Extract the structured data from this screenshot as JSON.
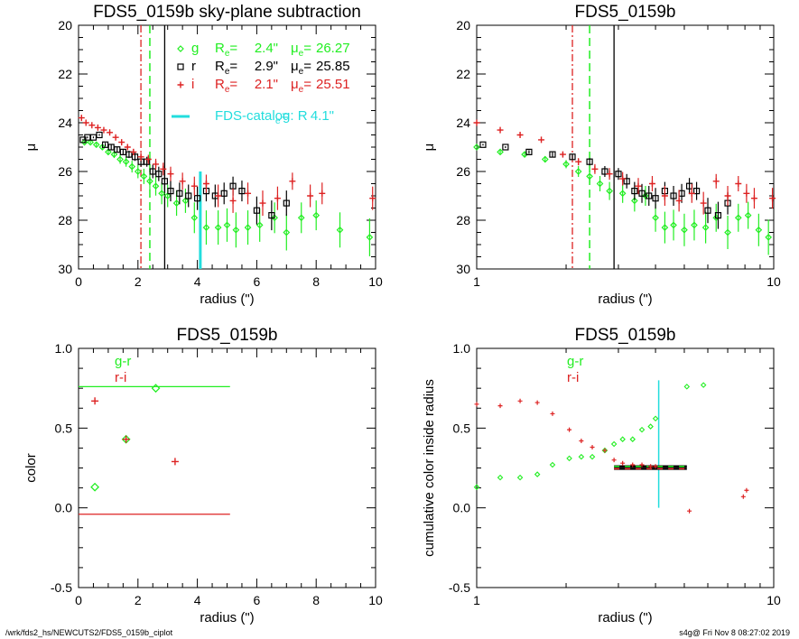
{
  "colors": {
    "g": "#22ee22",
    "r": "#000000",
    "i": "#dd2222",
    "catalog": "#22dddd"
  },
  "footer": {
    "path": "/wrk/fds2_hs/NEWCUTS2/FDS5_0159b_ciplot",
    "stamp": "s4g@  Fri Nov  8 08:27:02 2019"
  },
  "chart_data": [
    {
      "type": "scatter",
      "title": "FDS5_0159b sky-plane subtraction",
      "xlabel": "radius (\")",
      "ylabel": "μ",
      "xlim": [
        0,
        10
      ],
      "ylim": [
        30,
        20
      ],
      "xticks": [
        0,
        2,
        4,
        6,
        8,
        10
      ],
      "yticks": [
        20,
        22,
        24,
        26,
        28,
        30
      ],
      "legend": [
        {
          "band": "g",
          "re": "2.4\"",
          "mu": "26.27"
        },
        {
          "band": "r",
          "re": "2.9\"",
          "mu": "25.85"
        },
        {
          "band": "i",
          "re": "2.1\"",
          "mu": "25.51"
        }
      ],
      "catalog_label": "FDS-catalog: R",
      "catalog_re": "4.1\"",
      "vlines": {
        "g": 2.4,
        "r": 2.9,
        "i": 2.1,
        "catalog": 4.1
      },
      "series": [
        {
          "name": "g",
          "x": [
            0.2,
            0.4,
            0.6,
            0.8,
            1.0,
            1.2,
            1.4,
            1.6,
            1.8,
            2.0,
            2.2,
            2.4,
            2.6,
            2.8,
            3.0,
            3.3,
            3.6,
            3.9,
            4.3,
            4.7,
            5.0,
            5.3,
            5.7,
            6.1,
            6.6,
            7.0,
            7.5,
            8.0,
            8.8,
            9.8
          ],
          "y": [
            24.8,
            24.8,
            24.9,
            25.0,
            25.2,
            25.3,
            25.5,
            25.6,
            25.8,
            26.0,
            26.2,
            26.4,
            26.6,
            26.9,
            27.0,
            27.3,
            27.2,
            27.9,
            28.3,
            28.3,
            28.2,
            28.4,
            28.3,
            28.2,
            27.9,
            28.5,
            27.9,
            27.8,
            28.4,
            28.7
          ]
        },
        {
          "name": "r",
          "x": [
            0.15,
            0.3,
            0.5,
            0.7,
            0.9,
            1.1,
            1.3,
            1.5,
            1.7,
            1.9,
            2.1,
            2.3,
            2.5,
            2.7,
            2.9,
            3.1,
            3.4,
            3.7,
            4.0,
            4.3,
            4.6,
            4.9,
            5.2,
            5.5,
            6.0,
            6.5,
            7.0
          ],
          "y": [
            24.7,
            24.6,
            24.6,
            24.5,
            24.9,
            25.0,
            25.1,
            25.2,
            25.3,
            25.4,
            25.6,
            25.6,
            26.0,
            26.1,
            26.4,
            26.8,
            26.9,
            27.0,
            27.1,
            26.8,
            27.0,
            26.9,
            26.6,
            26.8,
            27.6,
            27.8,
            27.3
          ]
        },
        {
          "name": "i",
          "x": [
            0.1,
            0.25,
            0.45,
            0.65,
            0.85,
            1.05,
            1.25,
            1.45,
            1.65,
            1.85,
            2.1,
            2.35,
            2.6,
            2.85,
            3.1,
            3.5,
            3.9,
            4.3,
            4.7,
            5.2,
            5.7,
            6.2,
            6.7,
            7.2,
            7.8,
            8.2,
            9.9
          ],
          "y": [
            23.8,
            24.0,
            24.1,
            24.2,
            24.3,
            24.4,
            24.6,
            24.8,
            25.0,
            25.2,
            25.4,
            25.5,
            25.7,
            25.9,
            26.1,
            26.4,
            26.6,
            26.5,
            27.0,
            27.2,
            26.9,
            27.3,
            27.1,
            26.4,
            27.0,
            26.9,
            27.1
          ]
        }
      ]
    },
    {
      "type": "scatter",
      "title": "FDS5_0159b",
      "xlabel": "radius (\")",
      "ylabel": "μ",
      "xscale": "log",
      "xlim": [
        1,
        10
      ],
      "ylim": [
        30,
        20
      ],
      "xticks": [
        1,
        10
      ],
      "yticks": [
        20,
        22,
        24,
        26,
        28,
        30
      ],
      "vlines": {
        "g": 2.4,
        "r": 2.9,
        "i": 2.1
      },
      "series": [
        {
          "name": "g",
          "x": [
            1.0,
            1.2,
            1.45,
            1.7,
            2.0,
            2.2,
            2.4,
            2.6,
            2.8,
            3.1,
            3.4,
            3.7,
            4.0,
            4.3,
            4.6,
            5.0,
            5.4,
            5.9,
            6.4,
            7.0,
            7.6,
            8.2,
            8.9,
            9.6
          ],
          "y": [
            25.0,
            25.2,
            25.3,
            25.5,
            25.7,
            26.0,
            26.2,
            26.5,
            26.8,
            26.9,
            27.2,
            27.0,
            27.9,
            28.3,
            28.2,
            28.4,
            28.2,
            28.3,
            27.9,
            28.5,
            27.9,
            27.8,
            28.4,
            28.7
          ]
        },
        {
          "name": "r",
          "x": [
            1.05,
            1.25,
            1.5,
            1.8,
            2.1,
            2.4,
            2.7,
            3.0,
            3.2,
            3.4,
            3.6,
            3.8,
            4.0,
            4.3,
            4.6,
            4.9,
            5.2,
            5.5,
            6.0,
            6.5,
            7.0
          ],
          "y": [
            24.9,
            25.0,
            25.2,
            25.3,
            25.4,
            25.6,
            26.0,
            26.1,
            26.4,
            26.8,
            26.9,
            27.0,
            27.1,
            26.8,
            27.0,
            26.9,
            26.6,
            26.8,
            27.6,
            27.8,
            27.3
          ]
        },
        {
          "name": "i",
          "x": [
            1.0,
            1.2,
            1.4,
            1.65,
            1.95,
            2.2,
            2.5,
            2.8,
            3.1,
            3.5,
            3.9,
            4.3,
            4.8,
            5.3,
            5.8,
            6.4,
            7.0,
            7.6,
            8.1,
            8.6,
            9.9
          ],
          "y": [
            24.0,
            24.3,
            24.5,
            24.7,
            25.3,
            25.6,
            25.9,
            26.1,
            26.3,
            26.6,
            26.5,
            27.0,
            27.2,
            26.9,
            27.3,
            26.4,
            27.0,
            26.5,
            26.9,
            27.1,
            27.1
          ]
        }
      ]
    },
    {
      "type": "scatter",
      "title": "FDS5_0159b",
      "xlabel": "radius (\")",
      "ylabel": "color",
      "xlim": [
        0,
        10
      ],
      "ylim": [
        -0.5,
        1.0
      ],
      "xticks": [
        0,
        2,
        4,
        6,
        8,
        10
      ],
      "yticks": [
        -0.5,
        0.0,
        0.5,
        1.0
      ],
      "legend": [
        "g-r",
        "r-i"
      ],
      "hlines": [
        {
          "name": "g-r",
          "y": 0.76,
          "x0": 0,
          "x1": 5.1
        },
        {
          "name": "r-i",
          "y": -0.04,
          "x0": 0,
          "x1": 5.1
        }
      ],
      "series": [
        {
          "name": "g-r",
          "x": [
            0.55,
            1.6,
            2.6
          ],
          "y": [
            0.13,
            0.43,
            0.75
          ]
        },
        {
          "name": "r-i",
          "x": [
            0.55,
            1.6,
            3.25
          ],
          "y": [
            0.67,
            0.43,
            0.29
          ]
        }
      ]
    },
    {
      "type": "scatter",
      "title": "FDS5_0159b",
      "xlabel": "radius (\")",
      "ylabel": "cumulative color inside radius",
      "xscale": "log",
      "xlim": [
        1,
        10
      ],
      "ylim": [
        -0.5,
        1.0
      ],
      "xticks": [
        1,
        10
      ],
      "yticks": [
        -0.5,
        0.0,
        0.5,
        1.0
      ],
      "legend": [
        "g-r",
        "r-i"
      ],
      "vline": {
        "x": 4.1,
        "y0": 0.0,
        "y1": 0.8
      },
      "hbars": {
        "x0": 2.9,
        "x1": 5.1,
        "y_top": 0.26,
        "y_bottom": 0.245
      },
      "series": [
        {
          "name": "g-r",
          "x": [
            1.0,
            1.2,
            1.4,
            1.6,
            1.8,
            2.05,
            2.25,
            2.45,
            2.7,
            2.9,
            3.1,
            3.35,
            3.6,
            3.85,
            4.0,
            5.1,
            5.8
          ],
          "y": [
            0.13,
            0.19,
            0.19,
            0.21,
            0.27,
            0.31,
            0.32,
            0.32,
            0.36,
            0.4,
            0.43,
            0.43,
            0.49,
            0.51,
            0.56,
            0.76,
            0.77
          ]
        },
        {
          "name": "r-i",
          "x": [
            1.0,
            1.2,
            1.4,
            1.6,
            1.8,
            2.05,
            2.25,
            2.45,
            2.7,
            2.9,
            3.1,
            3.35,
            3.6,
            3.85,
            4.0,
            5.2,
            7.9,
            8.1
          ],
          "y": [
            0.65,
            0.64,
            0.67,
            0.66,
            0.59,
            0.49,
            0.42,
            0.38,
            0.36,
            0.3,
            0.28,
            0.27,
            0.27,
            0.26,
            0.26,
            -0.02,
            0.07,
            0.11
          ]
        }
      ]
    }
  ]
}
